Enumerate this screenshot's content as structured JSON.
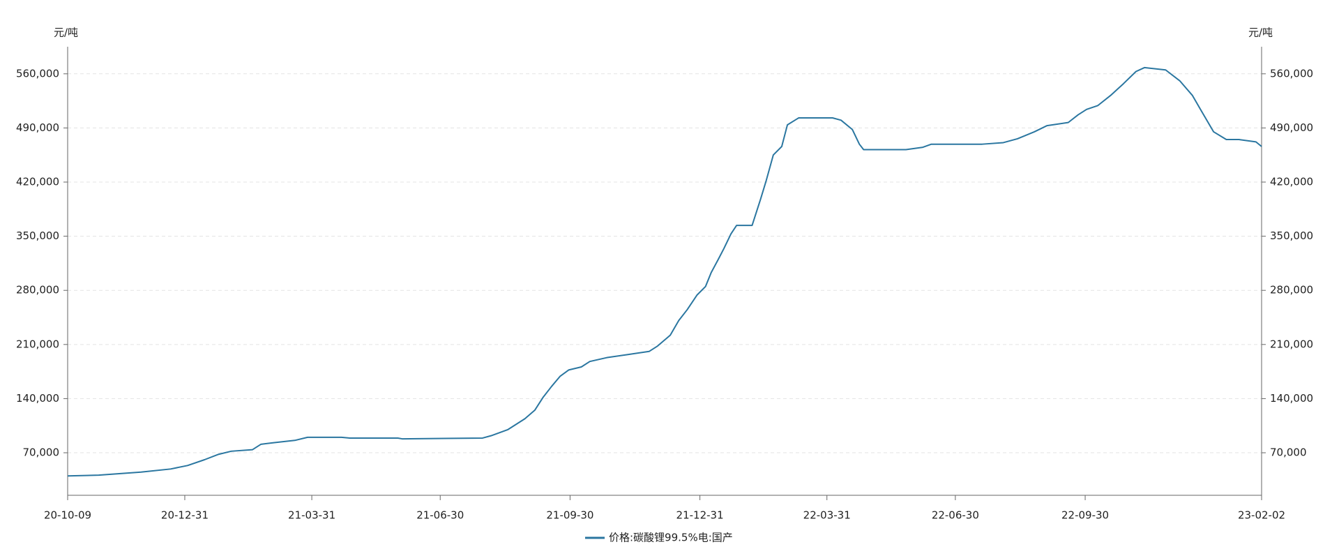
{
  "chart_data": {
    "type": "line",
    "y_label": "元/吨",
    "y2_label": "元/吨",
    "x": [
      "20-10-09",
      "20-10-31",
      "20-11-30",
      "20-12-21",
      "21-01-02",
      "21-01-14",
      "21-01-24",
      "21-02-02",
      "21-02-17",
      "21-02-23",
      "21-03-04",
      "21-03-19",
      "21-03-28",
      "21-04-21",
      "21-04-27",
      "21-05-31",
      "21-06-03",
      "21-07-30",
      "21-08-05",
      "21-08-17",
      "21-08-29",
      "21-09-05",
      "21-09-11",
      "21-09-17",
      "21-09-23",
      "21-09-29",
      "21-10-08",
      "21-10-14",
      "21-10-26",
      "21-11-10",
      "21-11-25",
      "21-12-01",
      "21-12-10",
      "21-12-16",
      "21-12-22",
      "21-12-29",
      "22-01-04",
      "22-01-08",
      "22-01-13",
      "22-01-17",
      "22-01-22",
      "22-01-26",
      "22-02-06",
      "22-02-12",
      "22-02-16",
      "22-02-21",
      "22-02-27",
      "22-03-03",
      "22-03-11",
      "22-04-04",
      "22-04-10",
      "22-04-18",
      "22-04-23",
      "22-04-26",
      "22-05-26",
      "22-06-07",
      "22-06-13",
      "22-07-19",
      "22-08-03",
      "22-08-13",
      "22-08-25",
      "22-09-03",
      "22-09-18",
      "22-09-25",
      "22-10-01",
      "22-10-09",
      "22-10-18",
      "22-10-27",
      "22-11-05",
      "22-11-11",
      "22-11-26",
      "22-12-06",
      "22-12-15",
      "22-12-21",
      "22-12-30",
      "23-01-08",
      "23-01-17",
      "23-01-29",
      "23-02-02"
    ],
    "series": [
      {
        "name": "价格:碳酸锂99.5%电:国产",
        "color": "#2a76a0",
        "values": [
          40000,
          41000,
          45000,
          49000,
          53500,
          61000,
          68000,
          72000,
          74000,
          81000,
          83000,
          86000,
          90000,
          90000,
          89000,
          89000,
          88000,
          89000,
          92000,
          100000,
          114000,
          125000,
          142000,
          156000,
          169000,
          177000,
          181000,
          188000,
          193000,
          197000,
          201000,
          208000,
          222000,
          241000,
          255000,
          274000,
          285000,
          303000,
          320000,
          334000,
          353000,
          364000,
          364000,
          398000,
          422000,
          455000,
          466000,
          494000,
          503000,
          503000,
          500000,
          488000,
          469000,
          462000,
          462000,
          465000,
          469000,
          469000,
          471000,
          476000,
          485000,
          493000,
          497000,
          507000,
          514000,
          519000,
          532000,
          547000,
          563000,
          568000,
          565000,
          551000,
          532000,
          513000,
          485000,
          475000,
          475000,
          472000,
          466000
        ]
      }
    ],
    "xlim": [
      "20-10-09",
      "23-02-02"
    ],
    "xticks": [
      "20-10-09",
      "20-12-31",
      "21-03-31",
      "21-06-30",
      "21-09-30",
      "21-12-31",
      "22-03-31",
      "22-06-30",
      "22-09-30",
      "23-02-02"
    ],
    "ylim": [
      15000,
      595000
    ],
    "yticks": [
      {
        "value": 70000,
        "label": "70,000"
      },
      {
        "value": 140000,
        "label": "140,000"
      },
      {
        "value": 210000,
        "label": "210,000"
      },
      {
        "value": 280000,
        "label": "280,000"
      },
      {
        "value": 350000,
        "label": "350,000"
      },
      {
        "value": 420000,
        "label": "420,000"
      },
      {
        "value": 490000,
        "label": "490,000"
      },
      {
        "value": 560000,
        "label": "560,000"
      }
    ],
    "y2lim": [
      15000,
      595000
    ],
    "y2ticks": [
      {
        "value": 70000,
        "label": "70,000"
      },
      {
        "value": 140000,
        "label": "140,000"
      },
      {
        "value": 210000,
        "label": "210,000"
      },
      {
        "value": 280000,
        "label": "280,000"
      },
      {
        "value": 350000,
        "label": "350,000"
      },
      {
        "value": 420000,
        "label": "420,000"
      },
      {
        "value": 490000,
        "label": "490,000"
      },
      {
        "value": 560000,
        "label": "560,000"
      }
    ],
    "grid": true,
    "legend": "bottom"
  }
}
